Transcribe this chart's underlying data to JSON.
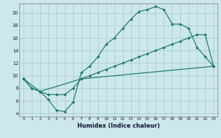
{
  "background_color": "#cde8ec",
  "grid_color": "#aecfd4",
  "line_color": "#1a7a6e",
  "xlabel": "Humidex (Indice chaleur)",
  "xlim": [
    -0.5,
    23.5
  ],
  "ylim": [
    3.5,
    21.5
  ],
  "yticks": [
    4,
    6,
    8,
    10,
    12,
    14,
    16,
    18,
    20
  ],
  "xticks": [
    0,
    1,
    2,
    3,
    4,
    5,
    6,
    7,
    8,
    9,
    10,
    11,
    12,
    13,
    14,
    15,
    16,
    17,
    18,
    19,
    20,
    21,
    22,
    23
  ],
  "line1_x": [
    0,
    1,
    2,
    3,
    4,
    5,
    6,
    7,
    8,
    9,
    10,
    11,
    12,
    13,
    14,
    15,
    16,
    17,
    18,
    19,
    20,
    21,
    22,
    23
  ],
  "line1_y": [
    9.5,
    8.0,
    7.5,
    6.2,
    4.5,
    4.3,
    5.8,
    10.5,
    11.5,
    13.0,
    15.0,
    16.0,
    17.5,
    19.0,
    20.2,
    20.5,
    21.0,
    20.5,
    18.2,
    18.2,
    17.5,
    14.5,
    13.0,
    11.5
  ],
  "line2_x": [
    0,
    1,
    2,
    3,
    4,
    5,
    6,
    7,
    8,
    9,
    10,
    11,
    12,
    13,
    14,
    15,
    16,
    17,
    18,
    19,
    20,
    21,
    22,
    23
  ],
  "line2_y": [
    9.5,
    8.0,
    7.5,
    7.0,
    7.0,
    7.0,
    8.0,
    9.5,
    10.0,
    10.5,
    11.0,
    11.5,
    12.0,
    12.5,
    13.0,
    13.5,
    14.0,
    14.5,
    15.0,
    15.5,
    16.0,
    16.5,
    16.5,
    11.5
  ],
  "line3_x": [
    0,
    2,
    7,
    23
  ],
  "line3_y": [
    9.5,
    7.5,
    9.5,
    11.5
  ]
}
